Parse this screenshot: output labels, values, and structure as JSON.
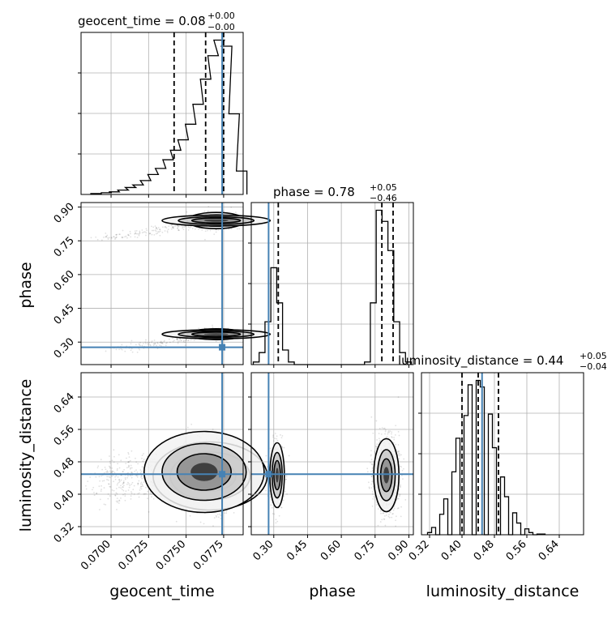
{
  "chart_data": [
    {
      "type": "histogram",
      "panel": "geocent_time-marginal",
      "title_name": "geocent_time",
      "title_value": "0.08",
      "title_plus": "+0.00",
      "title_minus": "−0.00",
      "xlim": [
        0.068,
        0.0788
      ],
      "bins": [
        {
          "x": 0.069,
          "count": 1
        },
        {
          "x": 0.0697,
          "count": 2
        },
        {
          "x": 0.0702,
          "count": 3
        },
        {
          "x": 0.0708,
          "count": 5
        },
        {
          "x": 0.0713,
          "count": 8
        },
        {
          "x": 0.0718,
          "count": 11
        },
        {
          "x": 0.0723,
          "count": 16
        },
        {
          "x": 0.0728,
          "count": 23
        },
        {
          "x": 0.0733,
          "count": 30
        },
        {
          "x": 0.0738,
          "count": 40
        },
        {
          "x": 0.0743,
          "count": 51
        },
        {
          "x": 0.0748,
          "count": 63
        },
        {
          "x": 0.0753,
          "count": 81
        },
        {
          "x": 0.0758,
          "count": 104
        },
        {
          "x": 0.0763,
          "count": 133
        },
        {
          "x": 0.0768,
          "count": 160
        },
        {
          "x": 0.0772,
          "count": 178
        },
        {
          "x": 0.0777,
          "count": 171
        },
        {
          "x": 0.0782,
          "count": 93
        },
        {
          "x": 0.0787,
          "count": 27
        }
      ],
      "quantiles": [
        0.0742,
        0.0763,
        0.0775
      ],
      "truth": 0.0774
    },
    {
      "type": "contour-scatter",
      "panel": "phase-vs-geocent_time",
      "xlim": [
        0.068,
        0.0788
      ],
      "ylim": [
        0.2,
        0.92
      ],
      "ylabel": "phase",
      "yticks": [
        "0.30",
        "0.45",
        "0.60",
        "0.75",
        "0.90"
      ],
      "modes": [
        {
          "center": [
            0.077,
            0.84
          ],
          "spread": [
            0.0015,
            0.03
          ]
        },
        {
          "center": [
            0.077,
            0.33
          ],
          "spread": [
            0.0015,
            0.02
          ]
        }
      ],
      "truth": [
        0.0774,
        0.277
      ]
    },
    {
      "type": "histogram",
      "panel": "phase-marginal",
      "title_name": "phase",
      "title_value": "0.78",
      "title_plus": "+0.05",
      "title_minus": "−0.46",
      "xlim": [
        0.2,
        0.92
      ],
      "bins": [
        {
          "x": 0.222,
          "count": 3
        },
        {
          "x": 0.248,
          "count": 14
        },
        {
          "x": 0.274,
          "count": 50
        },
        {
          "x": 0.3,
          "count": 113
        },
        {
          "x": 0.326,
          "count": 72
        },
        {
          "x": 0.352,
          "count": 17
        },
        {
          "x": 0.378,
          "count": 3
        },
        {
          "x": 0.716,
          "count": 3
        },
        {
          "x": 0.742,
          "count": 72
        },
        {
          "x": 0.768,
          "count": 180
        },
        {
          "x": 0.794,
          "count": 167
        },
        {
          "x": 0.82,
          "count": 133
        },
        {
          "x": 0.846,
          "count": 50
        },
        {
          "x": 0.872,
          "count": 14
        },
        {
          "x": 0.898,
          "count": 3
        }
      ],
      "quantiles": [
        0.32,
        0.78,
        0.83
      ],
      "truth": 0.277
    },
    {
      "type": "contour-scatter",
      "panel": "luminosity_distance-vs-geocent_time",
      "xlim": [
        0.068,
        0.0788
      ],
      "ylim": [
        0.3,
        0.7
      ],
      "xlabel": "geocent_time",
      "ylabel": "luminosity_distance",
      "xticks": [
        "0.0700",
        "0.0725",
        "0.0750",
        "0.0775"
      ],
      "yticks": [
        "0.32",
        "0.40",
        "0.48",
        "0.56",
        "0.64"
      ],
      "truth": [
        0.0774,
        0.4495
      ]
    },
    {
      "type": "contour-scatter",
      "panel": "luminosity_distance-vs-phase",
      "xlim": [
        0.2,
        0.92
      ],
      "ylim": [
        0.3,
        0.7
      ],
      "xlabel": "phase",
      "xticks": [
        "0.30",
        "0.45",
        "0.60",
        "0.75",
        "0.90"
      ],
      "truth": [
        0.277,
        0.4495
      ]
    },
    {
      "type": "histogram",
      "panel": "luminosity_distance-marginal",
      "title_name": "luminosity_distance",
      "title_value": "0.44",
      "title_plus": "+0.05",
      "title_minus": "−0.04",
      "xlim": [
        0.3,
        0.7
      ],
      "xlabel": "luminosity_distance",
      "xticks": [
        "0.32",
        "0.40",
        "0.48",
        "0.56",
        "0.64"
      ],
      "bins": [
        {
          "x": 0.32,
          "count": 3
        },
        {
          "x": 0.33,
          "count": 10
        },
        {
          "x": 0.35,
          "count": 28
        },
        {
          "x": 0.36,
          "count": 49
        },
        {
          "x": 0.38,
          "count": 86
        },
        {
          "x": 0.39,
          "count": 132
        },
        {
          "x": 0.41,
          "count": 163
        },
        {
          "x": 0.42,
          "count": 205
        },
        {
          "x": 0.44,
          "count": 211
        },
        {
          "x": 0.45,
          "count": 202
        },
        {
          "x": 0.47,
          "count": 165
        },
        {
          "x": 0.48,
          "count": 119
        },
        {
          "x": 0.5,
          "count": 79
        },
        {
          "x": 0.51,
          "count": 52
        },
        {
          "x": 0.53,
          "count": 30
        },
        {
          "x": 0.54,
          "count": 16
        },
        {
          "x": 0.56,
          "count": 8
        },
        {
          "x": 0.57,
          "count": 3
        },
        {
          "x": 0.59,
          "count": 1
        },
        {
          "x": 0.6,
          "count": 1
        }
      ],
      "quantiles": [
        0.4,
        0.44,
        0.49
      ],
      "truth": 0.4495
    }
  ],
  "colors": {
    "truth": "#4682b4",
    "grid": "#b0b0b0",
    "line": "#000000",
    "scatter": "#000000"
  }
}
